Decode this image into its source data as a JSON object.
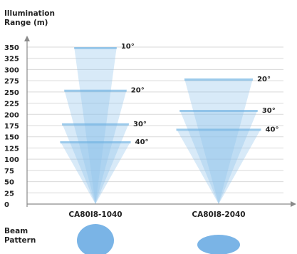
{
  "chart_data": {
    "type": "bar",
    "ylabel_lines": [
      "Illumination",
      "Range (m)"
    ],
    "ylim": [
      0,
      350
    ],
    "y_ticks": [
      0,
      25,
      50,
      75,
      100,
      125,
      150,
      175,
      200,
      225,
      250,
      275,
      300,
      325,
      350
    ],
    "grid": true,
    "categories": [
      "CA80I8-1040",
      "CA80I8-2040"
    ],
    "series": [
      {
        "name": "10°",
        "values": [
          350,
          null
        ]
      },
      {
        "name": "20°",
        "values": [
          255,
          280
        ]
      },
      {
        "name": "30°",
        "values": [
          180,
          210
        ]
      },
      {
        "name": "40°",
        "values": [
          140,
          168
        ]
      }
    ],
    "beam_pattern_label_lines": [
      "Beam",
      "Pattern"
    ],
    "colors": {
      "beam": "#8fc3ea",
      "beam_outline": "#6aaee0",
      "pattern": "#7ab4e6",
      "axis": "#8a8a8a",
      "grid": "#d9d9d9",
      "text": "#222222"
    }
  }
}
